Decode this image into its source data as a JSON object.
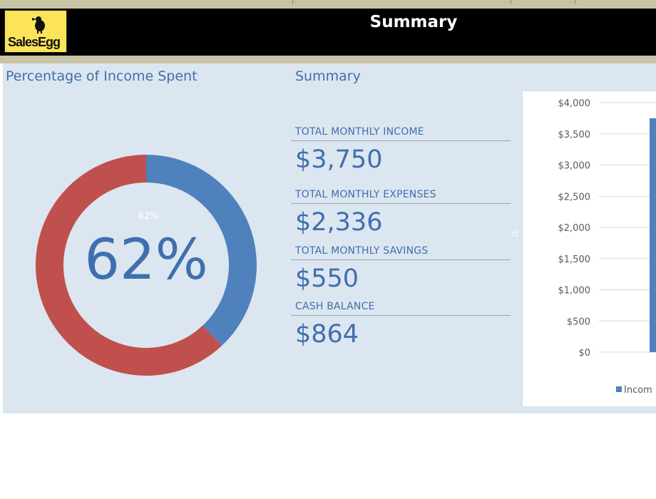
{
  "header": {
    "logo_text": "SalesEgg",
    "title": "Summary"
  },
  "donut_section": {
    "title": "Percentage of Income Spent",
    "center_value": "62%",
    "slice_label": "62%",
    "spent_fraction": 0.62,
    "colors": {
      "spent": "#c0504d",
      "remaining": "#4f81bd"
    }
  },
  "summary_section": {
    "title": "Summary",
    "items": [
      {
        "label": "TOTAL MONTHLY INCOME",
        "value": "$3,750"
      },
      {
        "label": "TOTAL MONTHLY EXPENSES",
        "value": "$2,336"
      },
      {
        "label": "TOTAL MONTHLY SAVINGS",
        "value": "$550"
      },
      {
        "label": "CASH BALANCE",
        "value": "$864"
      }
    ],
    "stray_text": "rt"
  },
  "chart_data": {
    "type": "bar",
    "categories": [
      "Income"
    ],
    "series": [
      {
        "name": "Income",
        "values": [
          3750
        ]
      }
    ],
    "ylim": [
      0,
      4000
    ],
    "yticks": [
      0,
      500,
      1000,
      1500,
      2000,
      2500,
      3000,
      3500,
      4000
    ],
    "ytick_labels": [
      "$0",
      "$500",
      "$1,000",
      "$1,500",
      "$2,000",
      "$2,500",
      "$3,000",
      "$3,500",
      "$4,000"
    ],
    "legend_visible_text": "Incom",
    "legend_position": "bottom",
    "grid": true,
    "bar_color": "#4f81bd"
  }
}
